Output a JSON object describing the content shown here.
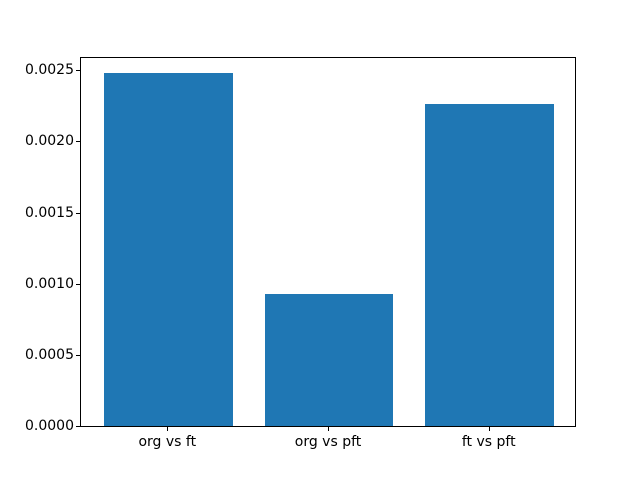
{
  "chart_data": {
    "type": "bar",
    "title": "",
    "xlabel": "",
    "ylabel": "",
    "categories": [
      "org vs ft",
      "org vs pft",
      "ft vs pft"
    ],
    "values": [
      0.00248,
      0.00093,
      0.00226
    ],
    "ylim": [
      0,
      0.0026
    ],
    "yticks": [
      0.0,
      0.0005,
      0.001,
      0.0015,
      0.002,
      0.0025
    ],
    "ytick_labels": [
      "0.0000",
      "0.0005",
      "0.0010",
      "0.0015",
      "0.0020",
      "0.0025"
    ],
    "bar_color": "#1f77b4",
    "spine_color": "#000000",
    "background_color": "#ffffff",
    "grid": false,
    "legend": null,
    "bar_width_fraction": 0.8
  }
}
